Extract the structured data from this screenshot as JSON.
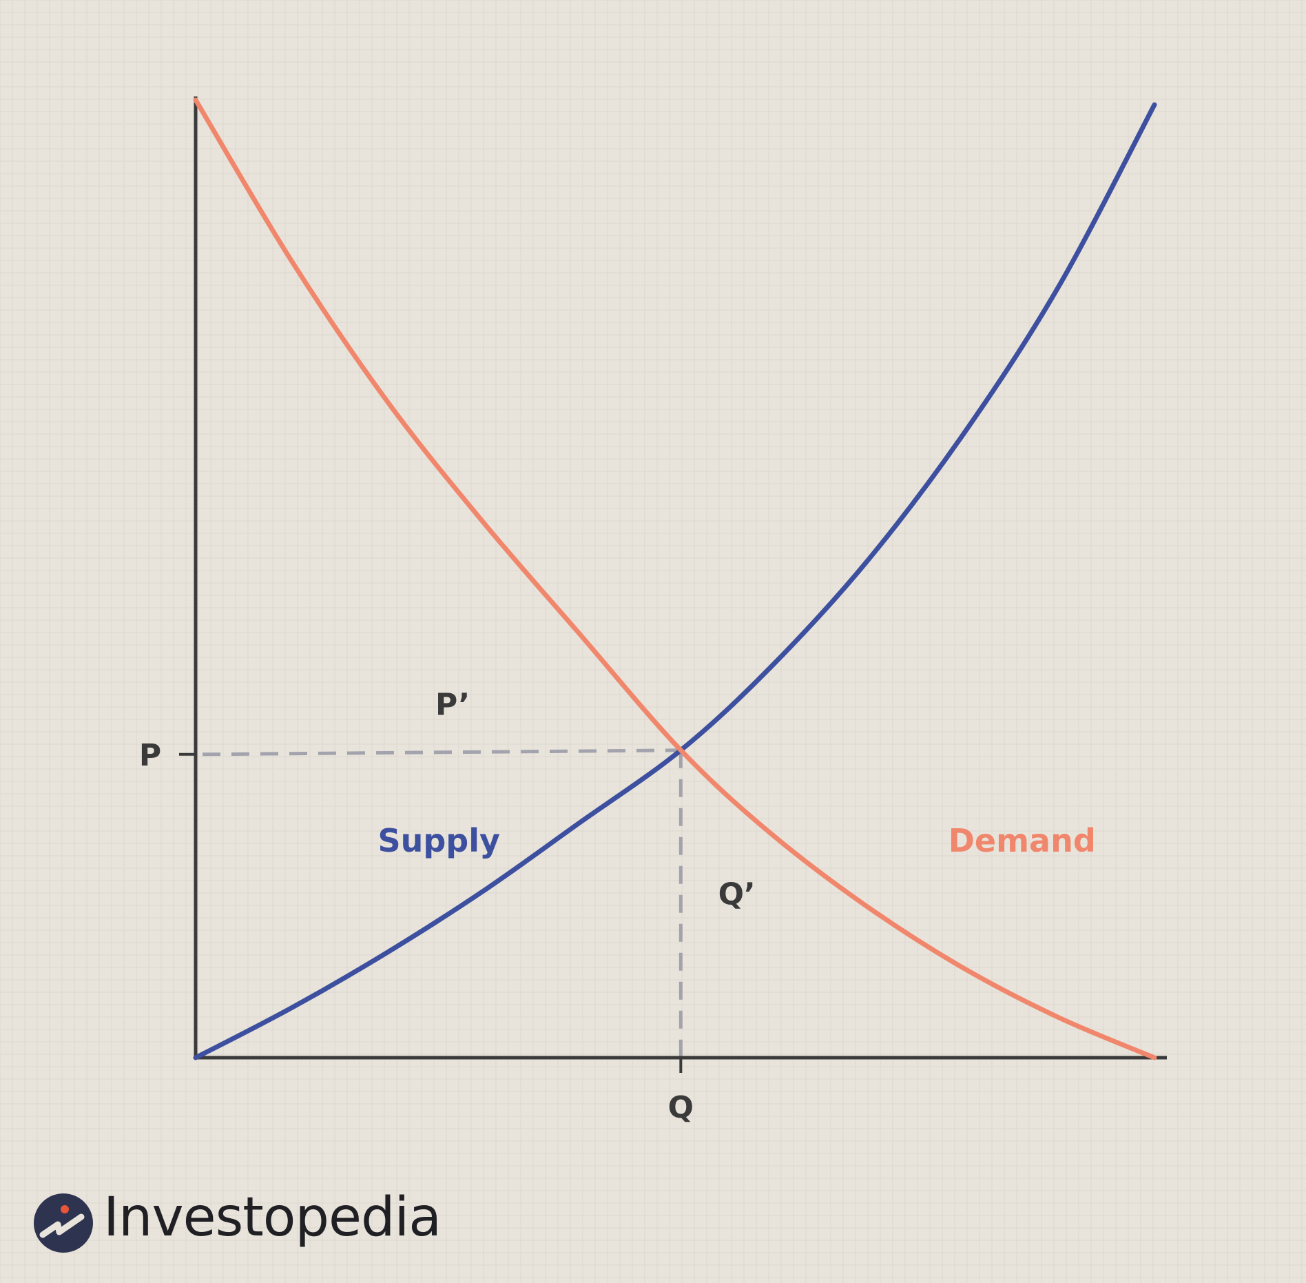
{
  "chart_data": {
    "type": "line",
    "title": "",
    "xlabel": "",
    "ylabel": "",
    "grid": true,
    "xlim": [
      0,
      100
    ],
    "ylim": [
      0,
      100
    ],
    "x_ticks": [
      {
        "value": 50.6,
        "label": "Q"
      }
    ],
    "y_ticks": [
      {
        "value": 32.1,
        "label": "P"
      }
    ],
    "series": [
      {
        "name": "Supply",
        "color": "#3d4f9f",
        "x": [
          0,
          10,
          20,
          30,
          40,
          50.6,
          60,
          70,
          80,
          90,
          100
        ],
        "y": [
          0,
          5.2,
          11.0,
          17.4,
          24.5,
          32.1,
          40.8,
          51.8,
          65.0,
          80.5,
          99.5
        ]
      },
      {
        "name": "Demand",
        "color": "#f0876c",
        "x": [
          0,
          10,
          20,
          30,
          40,
          50.6,
          60,
          70,
          80,
          90,
          100
        ],
        "y": [
          100,
          83.2,
          68.5,
          55.9,
          44.3,
          32.1,
          23.4,
          15.8,
          9.4,
          4.2,
          0
        ]
      }
    ],
    "annotations": [
      {
        "text": "P’",
        "x": 25.0,
        "y": 35.8
      },
      {
        "text": "Q’",
        "x": 54.5,
        "y": 16.0
      }
    ],
    "series_labels": [
      {
        "text": "Supply",
        "x": 19,
        "y": 21.5
      },
      {
        "text": "Demand",
        "x": 78.5,
        "y": 21.5
      }
    ],
    "equilibrium": {
      "x": 50.6,
      "y": 32.1
    }
  },
  "brand": {
    "name": "Investopedia"
  },
  "colors": {
    "background": "#e8e4db",
    "grid": "#ddd8cf",
    "axis": "#3a3a3a",
    "dashed": "#a3a3ad",
    "supply": "#3d4f9f",
    "demand": "#f0876c",
    "logo_circle": "#2e3450",
    "logo_dot": "#e9553a"
  }
}
